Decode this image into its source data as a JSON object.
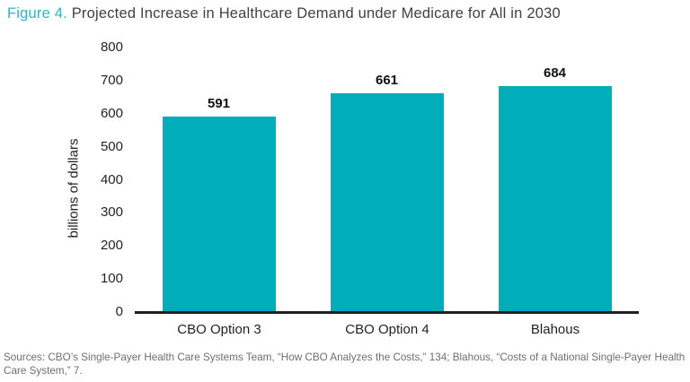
{
  "title": {
    "prefix": "Figure 4.",
    "rest": " Projected Increase in Healthcare Demand under Medicare for All in 2030"
  },
  "colors": {
    "bar": "#00ADB9",
    "title_accent": "#2FB4BF",
    "title_text": "#414042",
    "axis": "#231F20",
    "value_label": "#111111",
    "source_text": "#6D6E71",
    "background": "#FFFFFF"
  },
  "chart_data": {
    "type": "bar",
    "categories": [
      "CBO Option 3",
      "CBO Option 4",
      "Blahous"
    ],
    "values": [
      591,
      661,
      684
    ],
    "title": "Projected Increase in Healthcare Demand under Medicare for All in 2030",
    "xlabel": "",
    "ylabel": "billions of dollars",
    "ylim": [
      0,
      800
    ],
    "ytick_step": 100,
    "yticks": [
      0,
      100,
      200,
      300,
      400,
      500,
      600,
      700,
      800
    ],
    "grid": false,
    "legend": "none",
    "bar_color": "#00ADB9",
    "value_labels": [
      591,
      661,
      684
    ]
  },
  "source_note": "Sources: CBO’s Single-Payer Health Care Systems Team, “How CBO Analyzes the Costs,” 134; Blahous, “Costs of a National Single-Payer Health Care System,” 7."
}
